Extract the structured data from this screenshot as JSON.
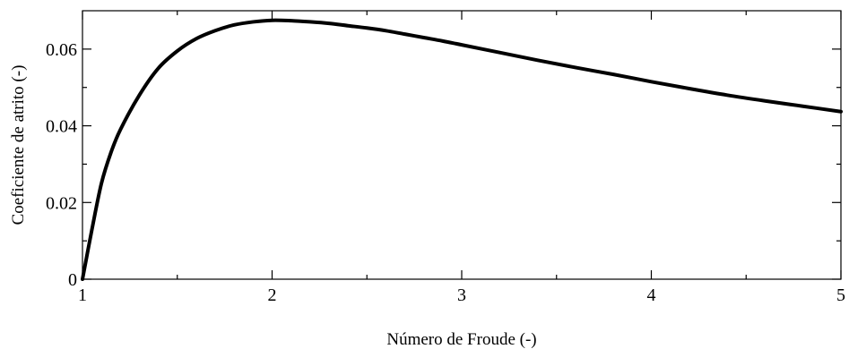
{
  "chart_data": {
    "type": "line",
    "title": "",
    "xlabel": "Número de Froude (-)",
    "ylabel": "Coeficiente de atrito (-)",
    "xlim": [
      1,
      5
    ],
    "ylim": [
      0,
      0.07
    ],
    "x_ticks": [
      1,
      2,
      3,
      4,
      5
    ],
    "x_tick_labels": [
      "1",
      "2",
      "3",
      "4",
      "5"
    ],
    "y_ticks": [
      0,
      0.02,
      0.04,
      0.06
    ],
    "y_tick_labels": [
      "0",
      "0.02",
      "0.04",
      "0.06"
    ],
    "grid": false,
    "legend": "none",
    "line_color": "#000000",
    "series": [
      {
        "x": [
          1.0,
          1.05,
          1.1,
          1.15,
          1.2,
          1.3,
          1.4,
          1.5,
          1.6,
          1.7,
          1.8,
          1.9,
          2.0,
          2.1,
          2.2,
          2.3,
          2.4,
          2.5,
          2.6,
          2.7,
          2.8,
          2.9,
          3.0,
          3.2,
          3.4,
          3.6,
          3.8,
          4.0,
          4.2,
          4.4,
          4.6,
          4.8,
          5.0
        ],
        "y": [
          0.0,
          0.013,
          0.025,
          0.033,
          0.039,
          0.048,
          0.055,
          0.0595,
          0.0627,
          0.0648,
          0.0663,
          0.0671,
          0.0675,
          0.0674,
          0.0671,
          0.0667,
          0.0661,
          0.0655,
          0.0648,
          0.0639,
          0.063,
          0.0621,
          0.0611,
          0.0591,
          0.0571,
          0.0552,
          0.0534,
          0.0515,
          0.0497,
          0.048,
          0.0465,
          0.0451,
          0.0437
        ]
      }
    ]
  }
}
